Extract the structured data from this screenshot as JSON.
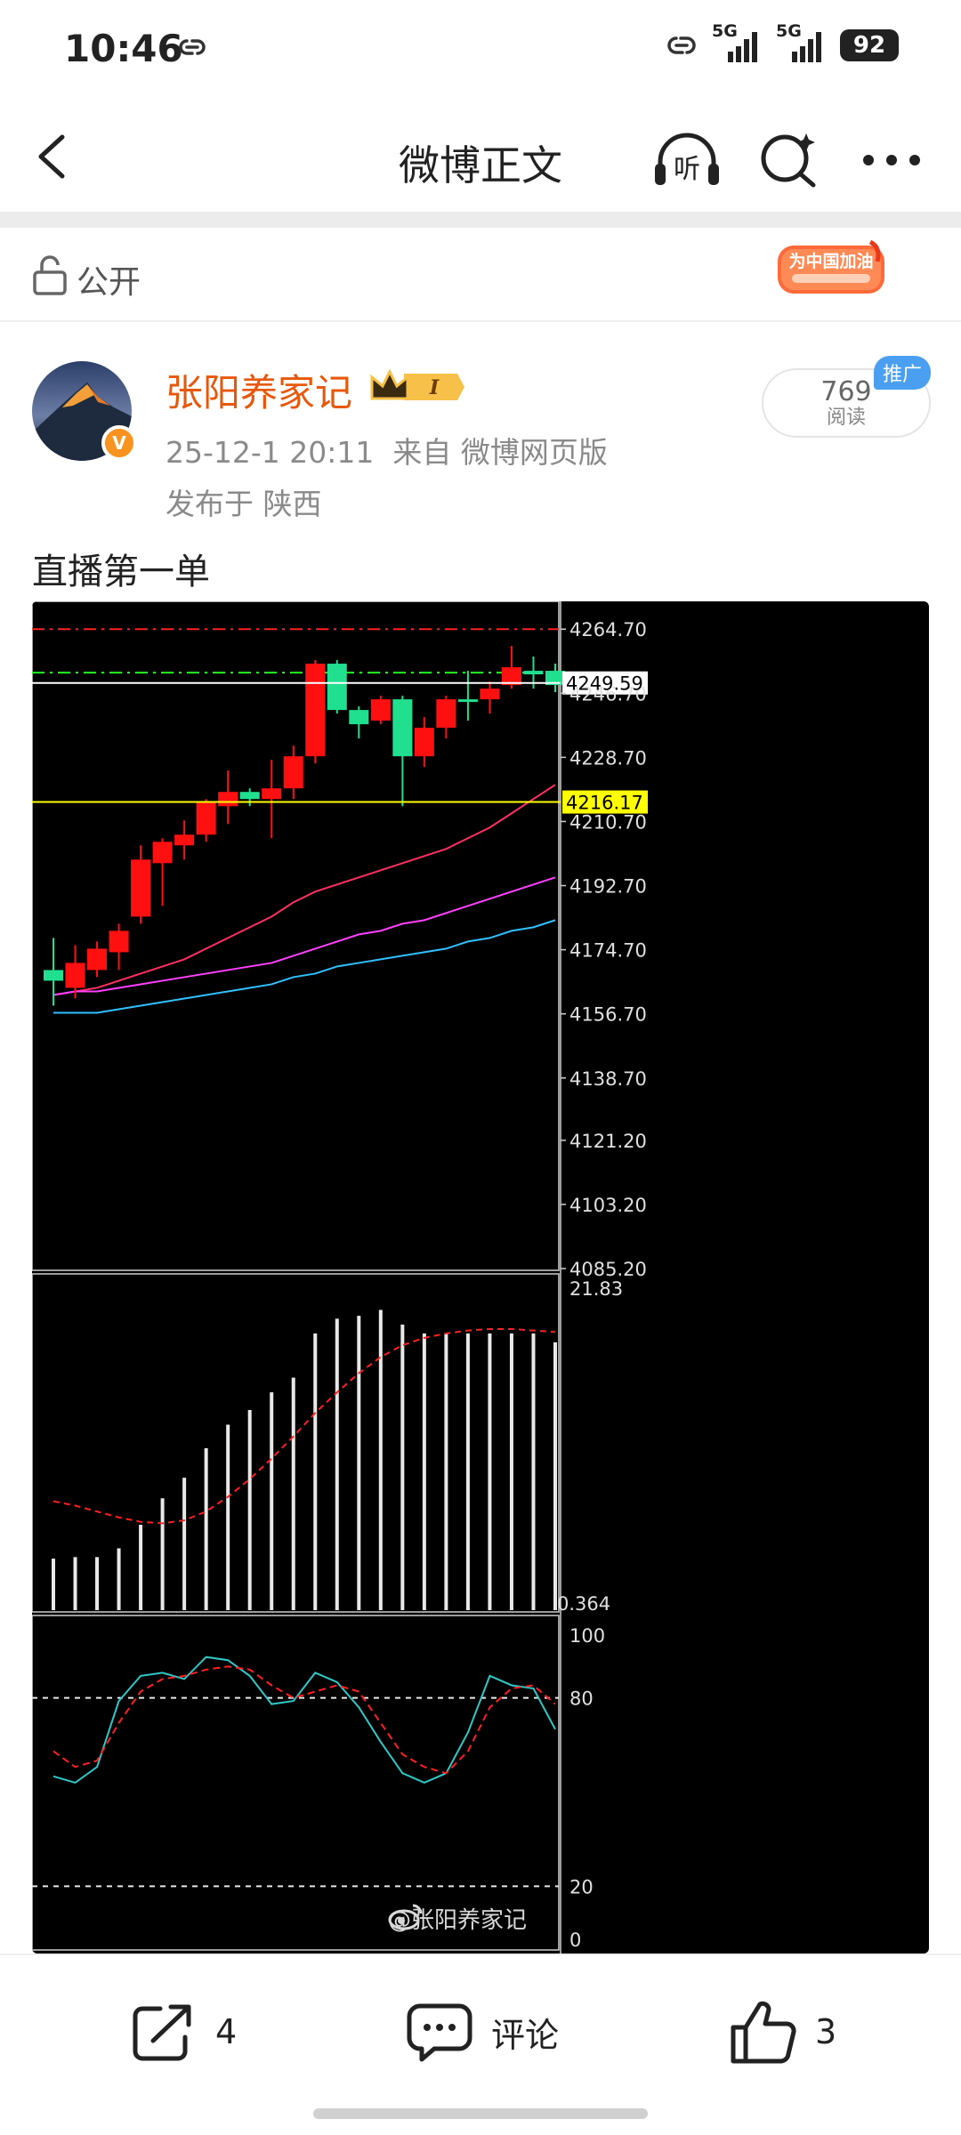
{
  "status_bar": {
    "time": "10:46",
    "signal_1": "5G",
    "signal_2": "5G",
    "battery": "92"
  },
  "header": {
    "title": "微博正文"
  },
  "visibility": {
    "label": "公开",
    "campaign_badge_text": "为中国加油"
  },
  "post": {
    "author": "张阳养家记",
    "level_badge": "I",
    "datetime": "25-12-1 20:11",
    "source": "来自 微博网页版",
    "location": "发布于 陕西",
    "reads_count": "769",
    "reads_label": "阅读",
    "promo_tag": "推广",
    "text": "直播第一单",
    "watermark": "@张阳养家记"
  },
  "chart_data": [
    {
      "type": "candlestick",
      "title": "",
      "y_tick_labels": [
        "4264.70",
        "4246.70",
        "4228.70",
        "4210.70",
        "4192.70",
        "4174.70",
        "4156.70",
        "4138.70",
        "4121.20",
        "4103.20",
        "4085.20"
      ],
      "ylim": [
        4085.2,
        4268
      ],
      "price_markers": [
        {
          "label": "4249.59",
          "value": 4249.59,
          "color": "#ffffff"
        },
        {
          "label": "4216.17",
          "value": 4216.17,
          "color": "#ffff00"
        }
      ],
      "reference_lines": [
        {
          "value": 4264.7,
          "style": "dash-dot",
          "color": "#ff2020"
        },
        {
          "value": 4252.5,
          "style": "dash-dot",
          "color": "#20ff20"
        }
      ],
      "candles": [
        {
          "o": 4166,
          "h": 4178,
          "l": 4159,
          "c": 4169,
          "up": false
        },
        {
          "o": 4164,
          "h": 4176,
          "l": 4161,
          "c": 4171,
          "up": true
        },
        {
          "o": 4169,
          "h": 4177,
          "l": 4167,
          "c": 4175,
          "up": true
        },
        {
          "o": 4174,
          "h": 4182,
          "l": 4169,
          "c": 4180,
          "up": true
        },
        {
          "o": 4184,
          "h": 4204,
          "l": 4182,
          "c": 4200,
          "up": true
        },
        {
          "o": 4199,
          "h": 4206,
          "l": 4187,
          "c": 4205,
          "up": true
        },
        {
          "o": 4204,
          "h": 4211,
          "l": 4200,
          "c": 4207,
          "up": true
        },
        {
          "o": 4207,
          "h": 4217,
          "l": 4205,
          "c": 4216,
          "up": true
        },
        {
          "o": 4215,
          "h": 4225,
          "l": 4210,
          "c": 4219,
          "up": true
        },
        {
          "o": 4219,
          "h": 4220,
          "l": 4215,
          "c": 4217,
          "up": false
        },
        {
          "o": 4217,
          "h": 4228,
          "l": 4206,
          "c": 4220,
          "up": true
        },
        {
          "o": 4220,
          "h": 4232,
          "l": 4217,
          "c": 4229,
          "up": true
        },
        {
          "o": 4229,
          "h": 4256,
          "l": 4227,
          "c": 4255,
          "up": true
        },
        {
          "o": 4255,
          "h": 4256,
          "l": 4241,
          "c": 4242,
          "up": false
        },
        {
          "o": 4242,
          "h": 4243,
          "l": 4234,
          "c": 4238,
          "up": false
        },
        {
          "o": 4239,
          "h": 4246,
          "l": 4238,
          "c": 4245,
          "up": true
        },
        {
          "o": 4245,
          "h": 4246,
          "l": 4215,
          "c": 4229,
          "up": false
        },
        {
          "o": 4229,
          "h": 4240,
          "l": 4226,
          "c": 4237,
          "up": true
        },
        {
          "o": 4237,
          "h": 4246,
          "l": 4234,
          "c": 4245,
          "up": true
        },
        {
          "o": 4245,
          "h": 4253,
          "l": 4239,
          "c": 4245,
          "up": false
        },
        {
          "o": 4245,
          "h": 4250,
          "l": 4241,
          "c": 4248,
          "up": true
        },
        {
          "o": 4249,
          "h": 4260,
          "l": 4248,
          "c": 4254,
          "up": true
        },
        {
          "o": 4253,
          "h": 4257,
          "l": 4248,
          "c": 4252,
          "up": false
        },
        {
          "o": 4253,
          "h": 4255,
          "l": 4247,
          "c": 4249,
          "up": false
        }
      ],
      "moving_averages": [
        {
          "color": "#ff3060",
          "values": [
            4162,
            4163,
            4164,
            4166,
            4168,
            4170,
            4172,
            4175,
            4178,
            4181,
            4184,
            4188,
            4191,
            4193,
            4195,
            4197,
            4199,
            4201,
            4203,
            4206,
            4209,
            4213,
            4217,
            4221
          ]
        },
        {
          "color": "#ff40ff",
          "values": [
            4162,
            4163,
            4163,
            4164,
            4165,
            4166,
            4167,
            4168,
            4169,
            4170,
            4171,
            4173,
            4175,
            4177,
            4179,
            4180,
            4182,
            4183,
            4185,
            4187,
            4189,
            4191,
            4193,
            4195
          ]
        },
        {
          "color": "#30c0ff",
          "values": [
            4157,
            4157,
            4157,
            4158,
            4159,
            4160,
            4161,
            4162,
            4163,
            4164,
            4165,
            4167,
            4168,
            4170,
            4171,
            4172,
            4173,
            4174,
            4175,
            4177,
            4178,
            4180,
            4181,
            4183
          ]
        }
      ]
    },
    {
      "type": "bar",
      "title": "",
      "y_tick_labels": [
        "21.83",
        "0.364"
      ],
      "ylim": [
        0,
        22
      ],
      "values": [
        3.5,
        3.6,
        3.6,
        4.2,
        5.8,
        7.6,
        9.0,
        11.0,
        12.6,
        13.6,
        14.8,
        15.8,
        18.8,
        19.8,
        20.0,
        20.4,
        19.4,
        18.8,
        18.8,
        18.8,
        18.8,
        18.8,
        18.8,
        18.2
      ],
      "signal": [
        7.4,
        7.1,
        6.7,
        6.3,
        6.0,
        5.9,
        6.1,
        6.7,
        7.7,
        8.9,
        10.3,
        11.8,
        13.4,
        14.8,
        16.1,
        17.2,
        18.0,
        18.5,
        18.8,
        19.0,
        19.1,
        19.1,
        19.0,
        18.9
      ]
    },
    {
      "type": "line",
      "title": "",
      "y_tick_labels": [
        "100",
        "80",
        "20",
        "0"
      ],
      "ylim": [
        0,
        100
      ],
      "levels": [
        80,
        20
      ],
      "series": [
        {
          "color": "#30c8c8",
          "values": [
            55,
            53,
            58,
            79,
            87,
            88,
            86,
            93,
            92,
            87,
            78,
            79,
            88,
            85,
            77,
            66,
            56,
            53,
            56,
            69,
            87,
            84,
            83,
            70
          ]
        },
        {
          "color": "#ff2020",
          "style": "dashed",
          "values": [
            63,
            58,
            60,
            72,
            82,
            86,
            87,
            89,
            90,
            89,
            84,
            80,
            82,
            84,
            82,
            72,
            62,
            58,
            56,
            63,
            77,
            83,
            84,
            78
          ]
        }
      ]
    }
  ],
  "actions": {
    "share_count": "4",
    "comment_label": "评论",
    "like_count": "3"
  },
  "colors": {
    "author": "#e8580c",
    "up_candle": "#ff1010",
    "down_candle": "#20e090",
    "promo": "#4a9ff0"
  }
}
